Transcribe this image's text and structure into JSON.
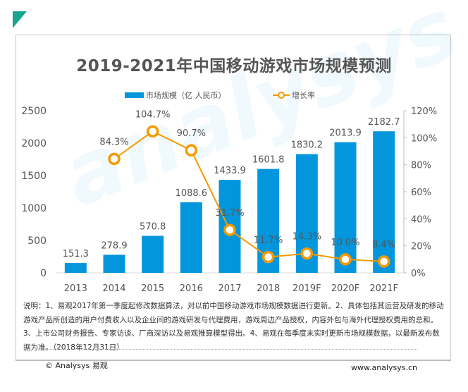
{
  "header": {
    "title": "2019-2021年中国移动游戏市场规模预测"
  },
  "legend": {
    "bar_label": "市场规模（亿 人民币）",
    "line_label": "增长率"
  },
  "colors": {
    "bar": "#0496dc",
    "line": "#f59a00",
    "accent": "#17a68f",
    "text": "#555555"
  },
  "watermark": "analysys 易观",
  "chart_data": {
    "type": "bar",
    "title": "2019-2021年中国移动游戏市场规模预测",
    "xlabel": "",
    "ylabel": "",
    "categories": [
      "2013",
      "2014",
      "2015",
      "2016",
      "2017",
      "2018",
      "2019F",
      "2020F",
      "2021F"
    ],
    "series": [
      {
        "name": "市场规模（亿 人民币）",
        "type": "bar",
        "axis": "left",
        "values": [
          151.3,
          278.9,
          570.8,
          1088.6,
          1433.9,
          1601.8,
          1830.2,
          2013.9,
          2182.7
        ],
        "labels": [
          "151.3",
          "278.9",
          "570.8",
          "1088.6",
          "1433.9",
          "1601.8",
          "1830.2",
          "2013.9",
          "2182.7"
        ]
      },
      {
        "name": "增长率",
        "type": "line",
        "axis": "right",
        "values": [
          null,
          84.3,
          104.7,
          90.7,
          31.7,
          11.7,
          14.3,
          10.0,
          8.4
        ],
        "labels": [
          "",
          "84.3%",
          "104.7%",
          "90.7%",
          "31.7%",
          "11.7%",
          "14.3%",
          "10.0%",
          "8.4%"
        ]
      }
    ],
    "ylim": [
      0,
      2500
    ],
    "y_ticks": [
      "0",
      "500",
      "1000",
      "1500",
      "2000",
      "2500"
    ],
    "y_tick_values": [
      0,
      500,
      1000,
      1500,
      2000,
      2500
    ],
    "y2lim": [
      0,
      120
    ],
    "y2_ticks": [
      "0%",
      "20%",
      "40%",
      "60%",
      "80%",
      "100%",
      "120%"
    ],
    "y2_tick_values": [
      0,
      20,
      40,
      60,
      80,
      100,
      120
    ],
    "grid": false,
    "legend_position": "top-center"
  },
  "note": {
    "text": "说明：1、易观2017年第一季度起修改数据算法，对以前中国移动游戏市场规模数据进行更新。2、具体包括其运营及研发的移动游戏产品所创造的用户付费收入以及企业间的游戏研发与代理费用，游戏周边产品授权，内容外包与海外代理授权费用的总和。3、上市公司财务报告、专家访谈、厂商深访以及易观推算模型得出。4、易观在每季度末实时更新市场规模数据，以最新发布数据为准。（2018年12月31日）"
  },
  "footer": {
    "copyright": "© Analysys 易观",
    "website": "www.analysys.cn"
  }
}
